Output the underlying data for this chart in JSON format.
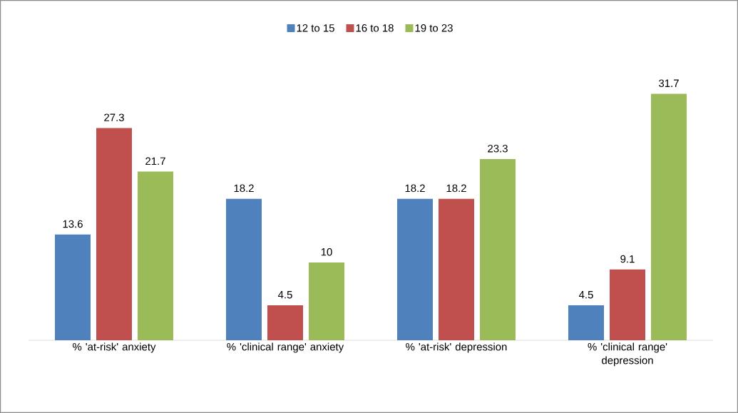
{
  "chart_data": {
    "type": "bar",
    "categories": [
      "% 'at-risk' anxiety",
      "% 'clinical range' anxiety",
      "% 'at-risk' depression",
      "% 'clinical range' depression"
    ],
    "series": [
      {
        "name": "12 to 15",
        "color": "#4f81bd",
        "values": [
          13.6,
          18.2,
          18.2,
          4.5
        ]
      },
      {
        "name": "16 to 18",
        "color": "#c0504d",
        "values": [
          27.3,
          4.5,
          18.2,
          9.1
        ]
      },
      {
        "name": "19 to 23",
        "color": "#9bbb59",
        "values": [
          21.7,
          10,
          23.3,
          31.7
        ]
      }
    ],
    "tick_labels": "x",
    "data_labels": true,
    "legend": "top"
  }
}
